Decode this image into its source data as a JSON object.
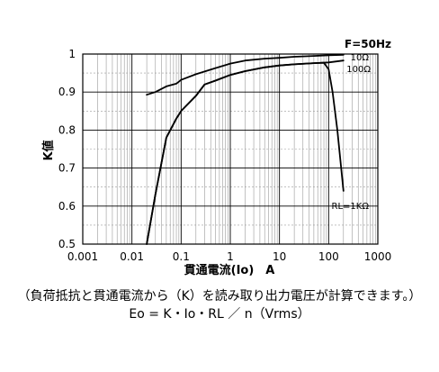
{
  "chart_data": {
    "type": "line",
    "title": "",
    "xlabel": "貫通電流(Io)　A",
    "ylabel": "K値",
    "x_scale": "log",
    "xlim": [
      0.001,
      1000
    ],
    "ylim": [
      0.5,
      1.0
    ],
    "x_ticks": [
      "0.001",
      "0.01",
      "0.1",
      "1",
      "10",
      "100",
      "1000"
    ],
    "y_ticks": [
      "0.5",
      "0.6",
      "0.7",
      "0.8",
      "0.9",
      "1"
    ],
    "grid": true,
    "annotations": [
      "F=50Hz",
      "10Ω",
      "100Ω",
      "RL=1KΩ"
    ],
    "series": [
      {
        "name": "10Ω",
        "x": [
          0.02,
          0.03,
          0.05,
          0.08,
          0.1,
          0.2,
          0.5,
          1,
          2,
          5,
          10,
          20,
          50,
          100,
          200
        ],
        "y": [
          0.893,
          0.9,
          0.915,
          0.922,
          0.932,
          0.947,
          0.963,
          0.975,
          0.983,
          0.988,
          0.99,
          0.993,
          0.995,
          0.997,
          0.998
        ]
      },
      {
        "name": "100Ω",
        "x": [
          0.02,
          0.03,
          0.05,
          0.08,
          0.1,
          0.2,
          0.3,
          0.5,
          1,
          2,
          5,
          10,
          20,
          50,
          100,
          200
        ],
        "y": [
          0.5,
          0.63,
          0.78,
          0.83,
          0.85,
          0.89,
          0.92,
          0.93,
          0.945,
          0.955,
          0.965,
          0.97,
          0.973,
          0.976,
          0.978,
          0.983
        ]
      },
      {
        "name": "RL=1KΩ",
        "x": [
          0.02,
          0.03,
          0.05,
          0.08,
          0.1,
          0.2,
          0.3,
          0.5,
          1,
          2,
          5,
          10,
          20,
          50,
          80,
          100,
          120,
          150,
          200
        ],
        "y": [
          0.5,
          0.63,
          0.78,
          0.83,
          0.85,
          0.89,
          0.92,
          0.93,
          0.945,
          0.955,
          0.965,
          0.97,
          0.973,
          0.976,
          0.977,
          0.96,
          0.9,
          0.8,
          0.64
        ]
      }
    ]
  },
  "caption": {
    "line1": "（負荷抵抗と貫通電流から（K）を読み取り出力電圧が計算できます。）",
    "line2": "Eo = K・Io・RL ／ n（Vrms）"
  }
}
